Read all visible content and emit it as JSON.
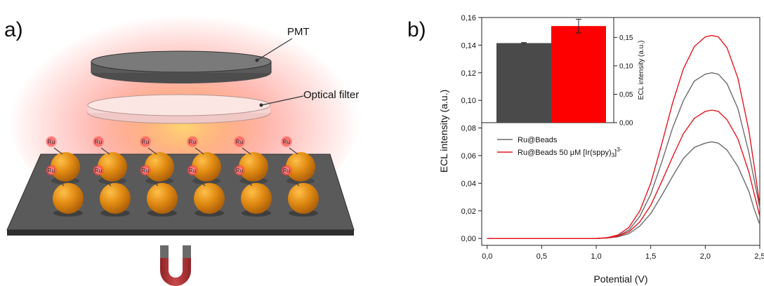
{
  "panels": {
    "a": "a)",
    "b": "b)"
  },
  "schematic": {
    "pmt_label": "PMT",
    "filter_label": "Optical filter",
    "ru_label": "Ru",
    "colors": {
      "glow": "#ff3b2f",
      "bead": "#e08a12",
      "plate": "#5a5a5a",
      "magnet": "#b3373a"
    }
  },
  "chart_data": [
    {
      "type": "line",
      "xlabel": "Potential (V)",
      "ylabel": "ECL intensity (a.u.)",
      "xlim": [
        -0.05,
        2.5
      ],
      "ylim": [
        -0.005,
        0.16
      ],
      "x_ticks": [
        "0,0",
        "0,5",
        "1,0",
        "1,5",
        "2,0",
        "2,5"
      ],
      "x_tick_values": [
        0,
        0.5,
        1.0,
        1.5,
        2.0,
        2.5
      ],
      "y_ticks": [
        "0,00",
        "0,02",
        "0,04",
        "0,06",
        "0,08",
        "0,10",
        "0,12",
        "0,14",
        "0,16"
      ],
      "y_tick_values": [
        0,
        0.02,
        0.04,
        0.06,
        0.08,
        0.1,
        0.12,
        0.14,
        0.16
      ],
      "legend_position": "inside-left",
      "series": [
        {
          "name": "Ru@Beads",
          "color": "#6b6b6b",
          "x": [
            0,
            1.0,
            1.1,
            1.2,
            1.3,
            1.4,
            1.5,
            1.6,
            1.7,
            1.8,
            1.9,
            2.0,
            2.06,
            2.12,
            2.2,
            2.3,
            2.4,
            2.45,
            2.5
          ],
          "y": [
            0,
            0,
            0.0005,
            0.002,
            0.006,
            0.016,
            0.032,
            0.055,
            0.08,
            0.1,
            0.114,
            0.119,
            0.12,
            0.119,
            0.112,
            0.094,
            0.062,
            0.042,
            0.022
          ]
        },
        {
          "name": "Ru@Beads",
          "color": "#6b6b6b",
          "x": [
            0,
            1.0,
            1.1,
            1.2,
            1.3,
            1.4,
            1.5,
            1.6,
            1.7,
            1.8,
            1.9,
            2.0,
            2.06,
            2.12,
            2.2,
            2.3,
            2.4,
            2.45,
            2.5
          ],
          "y": [
            0,
            0,
            0.0003,
            0.0012,
            0.0035,
            0.009,
            0.018,
            0.031,
            0.045,
            0.058,
            0.066,
            0.069,
            0.07,
            0.069,
            0.064,
            0.052,
            0.034,
            0.021,
            0.01
          ]
        },
        {
          "name": "Ru@Beads 50 μM [Ir(sppy)3]3-",
          "color": "#e3161f",
          "x": [
            0,
            1.0,
            1.1,
            1.2,
            1.3,
            1.4,
            1.5,
            1.6,
            1.7,
            1.8,
            1.9,
            2.0,
            2.06,
            2.12,
            2.2,
            2.3,
            2.4,
            2.45,
            2.5
          ],
          "y": [
            0,
            0,
            0.0006,
            0.0025,
            0.008,
            0.02,
            0.04,
            0.068,
            0.098,
            0.123,
            0.139,
            0.146,
            0.147,
            0.146,
            0.138,
            0.116,
            0.078,
            0.052,
            0.024
          ]
        },
        {
          "name": "Ru@Beads 50 μM [Ir(sppy)3]3-",
          "color": "#e3161f",
          "x": [
            0,
            1.0,
            1.1,
            1.2,
            1.3,
            1.4,
            1.5,
            1.6,
            1.7,
            1.8,
            1.9,
            2.0,
            2.06,
            2.12,
            2.2,
            2.3,
            2.4,
            2.45,
            2.5
          ],
          "y": [
            0,
            0,
            0.0004,
            0.0016,
            0.0048,
            0.012,
            0.024,
            0.041,
            0.059,
            0.076,
            0.087,
            0.092,
            0.093,
            0.092,
            0.086,
            0.072,
            0.048,
            0.032,
            0.016
          ]
        }
      ],
      "legend": [
        {
          "label": "Ru@Beads",
          "color": "#6b6b6b"
        },
        {
          "label_main": "Ru@Beads 50 ",
          "label_mu": "μ",
          "label_unit": "M [Ir(sppy)",
          "label_sub": "3",
          "label_close": "]",
          "label_sup": "3-",
          "color": "#e3161f"
        }
      ]
    },
    {
      "type": "bar",
      "ylabel": "ECL intensity (a.u.)",
      "ylim": [
        0,
        0.185
      ],
      "y_ticks": [
        "0,00",
        "0,05",
        "0,10",
        "0,15"
      ],
      "y_tick_values": [
        0,
        0.05,
        0.1,
        0.15
      ],
      "y_axis_side": "right",
      "bars": [
        {
          "value": 0.14,
          "error": 0.001,
          "color": "#4a4a4a"
        },
        {
          "value": 0.17,
          "error": 0.012,
          "color": "#ff0000"
        }
      ]
    }
  ]
}
